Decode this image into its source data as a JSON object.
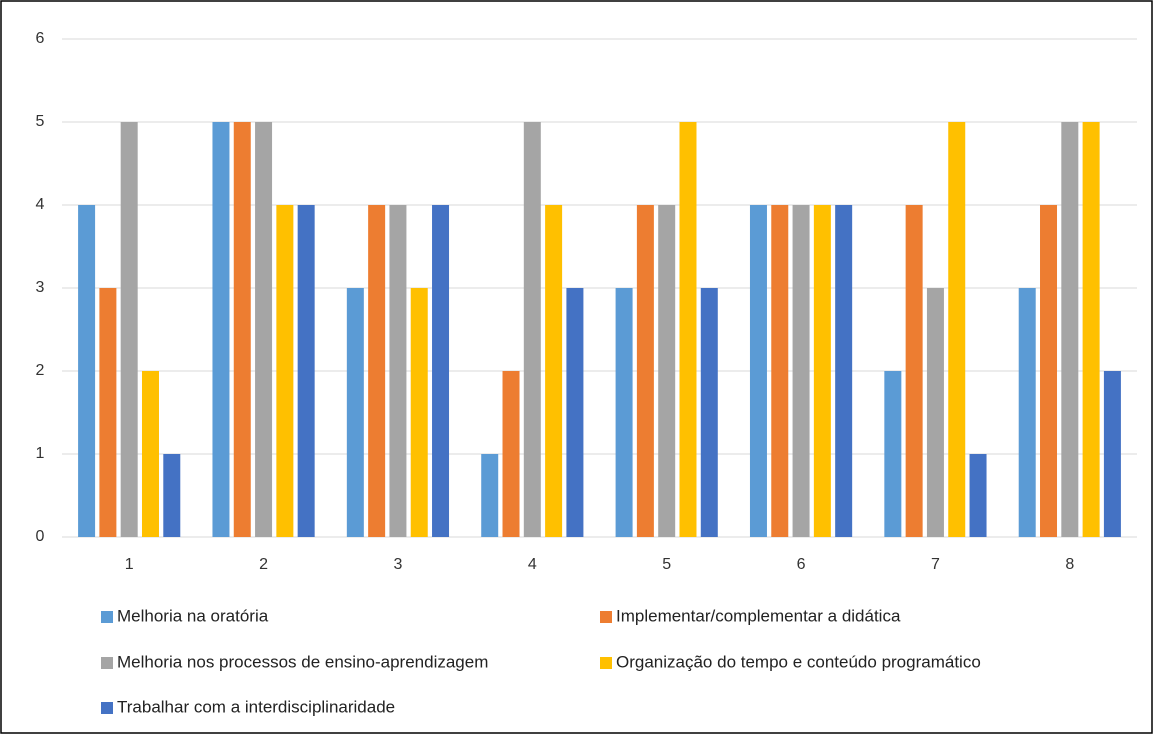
{
  "chart_data": {
    "type": "bar",
    "categories": [
      "1",
      "2",
      "3",
      "4",
      "5",
      "6",
      "7",
      "8"
    ],
    "series": [
      {
        "name": "Melhoria na oratória",
        "color": "#5b9bd5",
        "values": [
          4,
          5,
          3,
          1,
          3,
          4,
          2,
          3
        ]
      },
      {
        "name": "Implementar/complementar a didática",
        "color": "#ed7d31",
        "values": [
          3,
          5,
          4,
          2,
          4,
          4,
          4,
          4
        ]
      },
      {
        "name": "Melhoria nos processos de ensino-aprendizagem",
        "color": "#a5a5a5",
        "values": [
          5,
          5,
          4,
          5,
          4,
          4,
          3,
          5
        ]
      },
      {
        "name": "Organização do tempo e conteúdo programático",
        "color": "#ffc000",
        "values": [
          2,
          4,
          3,
          4,
          5,
          4,
          5,
          5
        ]
      },
      {
        "name": "Trabalhar com a interdisciplinaridade",
        "color": "#4472c4",
        "values": [
          1,
          4,
          4,
          3,
          3,
          4,
          1,
          2
        ]
      }
    ],
    "ylim": [
      0,
      6
    ],
    "yticks": [
      0,
      1,
      2,
      3,
      4,
      5,
      6
    ],
    "grid": true,
    "legend": "bottom"
  }
}
